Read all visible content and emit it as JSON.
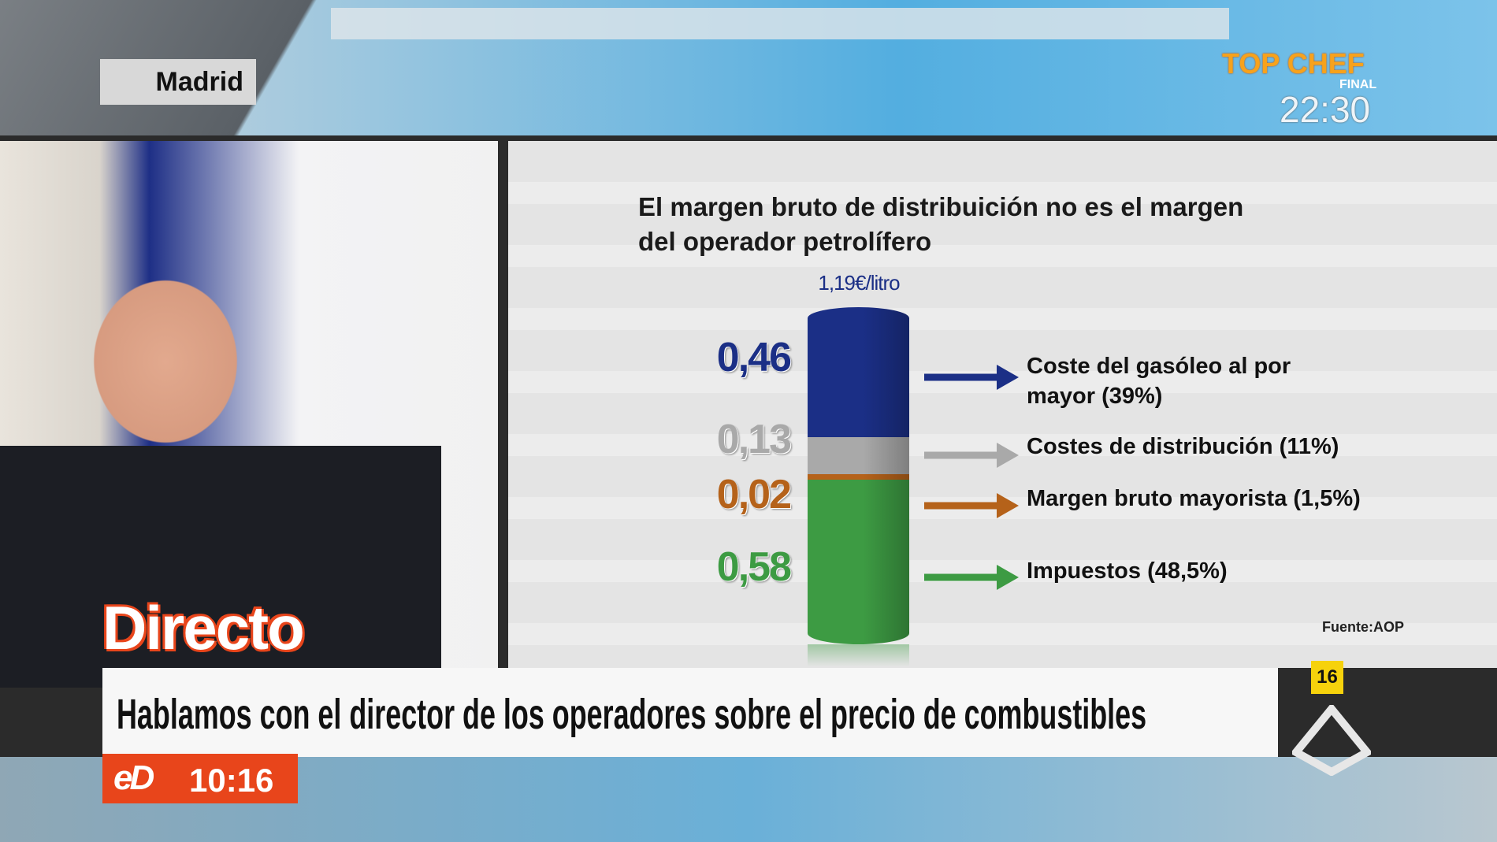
{
  "location": "Madrid",
  "promo": {
    "title": "TOP CHEF",
    "subtitle": "FINAL",
    "time": "22:30"
  },
  "chart_data": {
    "type": "stacked-bar",
    "title": [
      "El margen bruto de distribuición no es el margen",
      "del operador petrolífero"
    ],
    "total_label": "1,19€/litro",
    "series": [
      {
        "name": "Impuestos (48,5%)",
        "color": "#3d9b43",
        "values": [
          0.58
        ],
        "value_labels": [
          "0,58"
        ]
      },
      {
        "name": "Margen bruto mayorista (1,5%)",
        "color": "#b5621a",
        "values": [
          0.02
        ],
        "value_labels": [
          "0,02"
        ]
      },
      {
        "name": "Costes de distribución (11%)",
        "color": "#a9a9a9",
        "values": [
          0.13
        ],
        "value_labels": [
          "0,13"
        ]
      },
      {
        "name": "Coste del gasóleo al por mayor (39%)",
        "color": "#1b2f86",
        "values": [
          0.46
        ],
        "value_labels": [
          "0,46"
        ]
      }
    ],
    "source": "Fuente:AOP"
  },
  "badge": "Directo",
  "headline": "Hablamos con el director de los operadores sobre el precio de combustibles",
  "channel": {
    "logo": "eD",
    "time": "10:16"
  },
  "rating": "16"
}
